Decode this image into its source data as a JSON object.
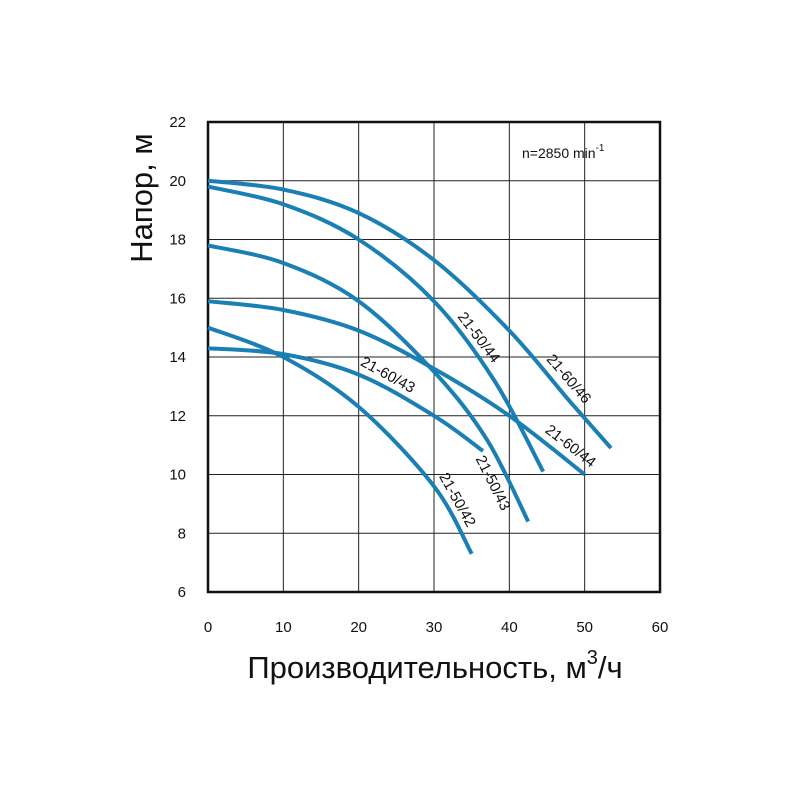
{
  "chart_data": {
    "type": "line",
    "title": "",
    "xlabel": "Производительность, м",
    "xlabel_sup": "3",
    "xlabel_unit": "/ч",
    "ylabel": "Напор, м",
    "xlim": [
      0,
      60
    ],
    "ylim": [
      6,
      22
    ],
    "x_ticks": [
      "0",
      "10",
      "20",
      "30",
      "40",
      "50",
      "60"
    ],
    "y_ticks": [
      "6",
      "8",
      "10",
      "12",
      "14",
      "16",
      "18",
      "20",
      "22"
    ],
    "grid": true,
    "annotation": {
      "text": "n=2850 min",
      "sup": "-1"
    },
    "line_color": "#1a7fb4",
    "series": [
      {
        "name": "21-60/46",
        "x": [
          0,
          10,
          20,
          30,
          40,
          48,
          53.5
        ],
        "y": [
          20,
          19.7,
          18.9,
          17.3,
          14.9,
          12.5,
          10.9
        ]
      },
      {
        "name": "21-50/44",
        "x": [
          0,
          10,
          20,
          30,
          38,
          44.5
        ],
        "y": [
          19.8,
          19.2,
          18.0,
          15.9,
          13.2,
          10.1
        ]
      },
      {
        "name": "21-60/44",
        "x": [
          0,
          10,
          20,
          30,
          40,
          50
        ],
        "y": [
          15.9,
          15.6,
          14.9,
          13.6,
          12.0,
          10.0
        ]
      },
      {
        "name": "21-50/43",
        "x": [
          0,
          10,
          20,
          30,
          37,
          42.5
        ],
        "y": [
          17.8,
          17.2,
          15.9,
          13.5,
          11.2,
          8.4
        ]
      },
      {
        "name": "21-60/43",
        "x": [
          0,
          10,
          20,
          30,
          36.5
        ],
        "y": [
          14.3,
          14.1,
          13.4,
          12.0,
          10.8
        ]
      },
      {
        "name": "21-50/42",
        "x": [
          0,
          10,
          20,
          30,
          35
        ],
        "y": [
          15.0,
          14.0,
          12.3,
          9.6,
          7.3
        ]
      }
    ]
  }
}
